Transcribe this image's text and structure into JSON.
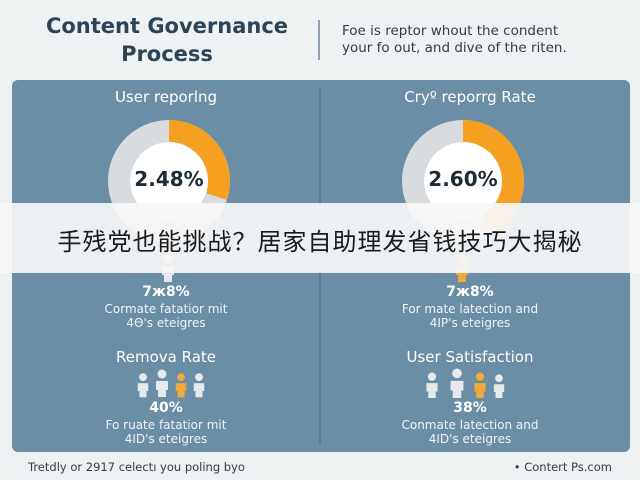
{
  "header": {
    "title_line1": "Content Governance",
    "title_line2": "Process",
    "intro_line1": "Foe is reptor whout the condent",
    "intro_line2": "your fo out, and dive of the riten."
  },
  "colors": {
    "board": "#6b8ea7",
    "accent_orange": "#f5a020",
    "ring_track": "#d9dcdf",
    "people_light": "#e6eaed",
    "people_orange": "#f2a93b"
  },
  "cards": {
    "left_top": {
      "title": "User reporlng",
      "gauge_value": "2.48%",
      "gauge_fill": 0.3,
      "people_icon": "person-icon",
      "percent": "7ж8%",
      "caption_line1": "Cormate fatatior mit",
      "caption_line2": "4Ө's eteigres"
    },
    "right_top": {
      "title": "Cryº reporrg Rate",
      "gauge_value": "2.60%",
      "gauge_fill": 0.42,
      "people_icon": "person-icon",
      "percent": "7ж8%",
      "caption_line1": "For mate latection and",
      "caption_line2": "4IP's eteigres"
    },
    "left_bottom": {
      "title": "Remova Rate",
      "people_icon": "group-icon",
      "percent": "40%",
      "caption_line1": "Fo ruate fatatior mit",
      "caption_line2": "4ID's eteigres"
    },
    "right_bottom": {
      "title": "User Satisfaction",
      "people_icon": "group-icon",
      "percent": "38%",
      "caption_line1": "Conmate latection and",
      "caption_line2": "4ID's eteigres"
    }
  },
  "banner": {
    "text": "手残党也能挑战？居家自助理发省钱技巧大揭秘"
  },
  "footer": {
    "left": "Tretdly or 2917 celectı you poling byo",
    "right": "• Contert Ps.com"
  }
}
